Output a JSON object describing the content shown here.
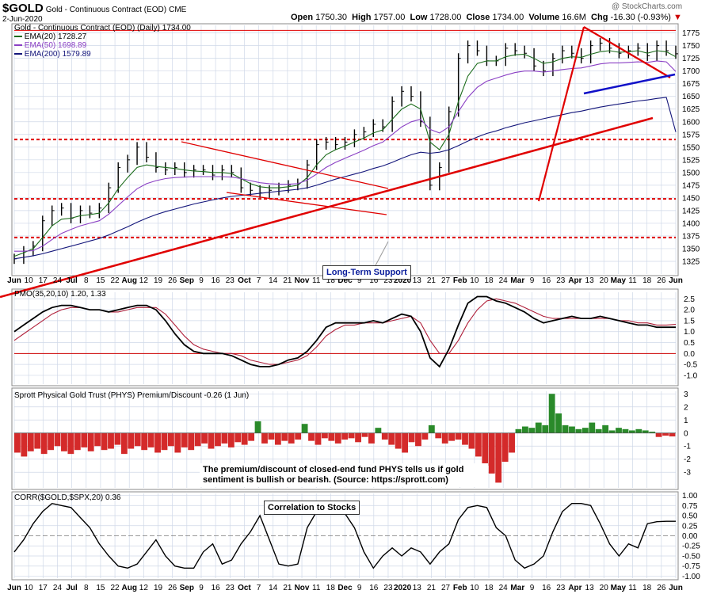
{
  "header": {
    "symbol": "$GOLD",
    "name": "Gold - Continuous Contract (EOD)",
    "exchange": "CME",
    "date": "2-Jun-2020",
    "open_label": "Open",
    "open": "1750.30",
    "high_label": "High",
    "high": "1757.00",
    "low_label": "Low",
    "low": "1728.00",
    "close_label": "Close",
    "close": "1734.00",
    "volume_label": "Volume",
    "volume": "16.6M",
    "chg_label": "Chg",
    "chg": "-16.30 (-0.93%)",
    "chg_arrow": "▼",
    "credit": "@ StockCharts.com"
  },
  "colors": {
    "price_bar": "#000000",
    "ema20": "#1a6b1a",
    "ema50": "#8a3fc4",
    "ema200": "#13157a",
    "support_red": "#e00000",
    "trend_blue": "#1010c8",
    "pmo_black": "#000000",
    "pmo_signal": "#b0203a",
    "premium_green": "#2a8a2a",
    "discount_red": "#d42a2a",
    "zero_line": "#cc0000",
    "grid": "#cfd8e8",
    "corr_line": "#000000"
  },
  "chart_data": [
    {
      "type": "line",
      "title": "Gold - Continuous Contract (EOD) (Daily) 1734.00",
      "legend": [
        {
          "label": "EMA(20) 1728.27",
          "color": "#1a6b1a"
        },
        {
          "label": "EMA(50) 1698.89",
          "color": "#8a3fc4"
        },
        {
          "label": "EMA(200) 1579.89",
          "color": "#13157a"
        }
      ],
      "ylim": [
        1300,
        1790
      ],
      "y_ticks": [
        1325,
        1350,
        1375,
        1400,
        1425,
        1450,
        1475,
        1500,
        1525,
        1550,
        1575,
        1600,
        1625,
        1650,
        1675,
        1700,
        1725,
        1750,
        1775
      ],
      "horizontal_levels": [
        1372,
        1448,
        1565,
        1780
      ],
      "annotation": "Long-Term Support",
      "x": [
        0,
        4,
        8,
        12,
        16,
        20,
        24,
        28,
        32,
        36,
        40,
        44,
        48,
        52,
        56,
        60,
        64,
        68,
        72,
        76,
        80,
        84,
        88,
        92,
        96,
        100,
        104,
        108,
        112,
        116,
        120,
        124,
        128,
        132,
        136,
        140,
        144,
        148,
        152,
        156,
        160,
        164,
        168,
        172,
        176,
        180,
        184,
        188,
        192,
        196,
        200,
        204,
        208,
        212,
        216,
        220,
        224,
        228,
        232,
        236,
        240,
        244,
        248,
        252,
        256,
        260,
        264,
        268,
        272,
        276,
        280
      ],
      "close": [
        1330,
        1345,
        1355,
        1405,
        1425,
        1430,
        1410,
        1425,
        1420,
        1430,
        1470,
        1510,
        1525,
        1550,
        1530,
        1510,
        1505,
        1510,
        1500,
        1505,
        1505,
        1495,
        1505,
        1500,
        1470,
        1465,
        1460,
        1465,
        1470,
        1475,
        1478,
        1515,
        1555,
        1560,
        1555,
        1560,
        1575,
        1580,
        1595,
        1590,
        1640,
        1660,
        1650,
        1600,
        1475,
        1510,
        1620,
        1725,
        1750,
        1740,
        1720,
        1720,
        1745,
        1740,
        1735,
        1710,
        1700,
        1725,
        1740,
        1735,
        1725,
        1750,
        1755,
        1745,
        1735,
        1740,
        1745,
        1730,
        1750,
        1740,
        1734
      ],
      "ema20": [
        1335,
        1342,
        1350,
        1372,
        1395,
        1408,
        1410,
        1415,
        1417,
        1420,
        1440,
        1468,
        1490,
        1510,
        1515,
        1512,
        1510,
        1508,
        1505,
        1503,
        1502,
        1500,
        1500,
        1498,
        1488,
        1478,
        1472,
        1470,
        1470,
        1472,
        1475,
        1490,
        1515,
        1535,
        1545,
        1552,
        1560,
        1568,
        1578,
        1584,
        1605,
        1625,
        1635,
        1625,
        1560,
        1545,
        1575,
        1640,
        1690,
        1715,
        1720,
        1720,
        1728,
        1732,
        1733,
        1725,
        1715,
        1718,
        1725,
        1728,
        1727,
        1733,
        1738,
        1740,
        1737,
        1738,
        1740,
        1735,
        1740,
        1738,
        1728
      ],
      "ema50": [
        1345,
        1345,
        1346,
        1355,
        1368,
        1380,
        1388,
        1395,
        1400,
        1405,
        1418,
        1435,
        1452,
        1468,
        1478,
        1484,
        1488,
        1490,
        1491,
        1492,
        1492,
        1492,
        1492,
        1491,
        1488,
        1484,
        1480,
        1478,
        1477,
        1477,
        1478,
        1485,
        1497,
        1510,
        1520,
        1528,
        1536,
        1544,
        1553,
        1560,
        1575,
        1590,
        1600,
        1605,
        1585,
        1578,
        1590,
        1620,
        1648,
        1668,
        1680,
        1686,
        1692,
        1697,
        1700,
        1700,
        1698,
        1700,
        1703,
        1705,
        1706,
        1710,
        1714,
        1716,
        1716,
        1717,
        1718,
        1717,
        1720,
        1718,
        1699
      ],
      "ema200": [
        1330,
        1333,
        1336,
        1340,
        1345,
        1350,
        1355,
        1360,
        1365,
        1370,
        1377,
        1385,
        1393,
        1402,
        1410,
        1417,
        1423,
        1428,
        1433,
        1438,
        1442,
        1446,
        1450,
        1453,
        1455,
        1457,
        1459,
        1461,
        1463,
        1465,
        1467,
        1470,
        1475,
        1481,
        1487,
        1492,
        1497,
        1502,
        1508,
        1513,
        1520,
        1528,
        1535,
        1540,
        1538,
        1540,
        1545,
        1553,
        1562,
        1570,
        1577,
        1582,
        1588,
        1593,
        1598,
        1602,
        1606,
        1610,
        1614,
        1618,
        1621,
        1625,
        1629,
        1632,
        1635,
        1638,
        1641,
        1643,
        1646,
        1648,
        1580
      ]
    },
    {
      "type": "line",
      "title": "PMO(35,20,10) 1.20, 1.33",
      "ylim": [
        -1.4,
        2.8
      ],
      "y_ticks": [
        -1.0,
        -0.5,
        0.0,
        0.5,
        1.0,
        1.5,
        2.0,
        2.5
      ],
      "pmo": [
        1.0,
        1.3,
        1.6,
        1.9,
        2.1,
        2.2,
        2.2,
        2.1,
        2.0,
        2.0,
        1.9,
        2.0,
        2.1,
        2.2,
        2.2,
        2.0,
        1.5,
        0.9,
        0.4,
        0.1,
        0.0,
        0.0,
        0.0,
        -0.1,
        -0.3,
        -0.5,
        -0.6,
        -0.6,
        -0.5,
        -0.3,
        -0.2,
        0.1,
        0.6,
        1.2,
        1.4,
        1.4,
        1.4,
        1.4,
        1.5,
        1.4,
        1.6,
        1.8,
        1.7,
        1.0,
        -0.2,
        -0.6,
        0.2,
        1.3,
        2.3,
        2.6,
        2.6,
        2.4,
        2.3,
        2.1,
        1.9,
        1.6,
        1.4,
        1.5,
        1.6,
        1.7,
        1.6,
        1.6,
        1.7,
        1.6,
        1.5,
        1.4,
        1.3,
        1.3,
        1.2,
        1.2,
        1.2
      ],
      "signal": [
        0.6,
        0.9,
        1.2,
        1.5,
        1.8,
        2.0,
        2.1,
        2.1,
        2.0,
        2.0,
        1.9,
        1.9,
        2.0,
        2.1,
        2.1,
        2.1,
        1.8,
        1.3,
        0.8,
        0.4,
        0.2,
        0.1,
        0.0,
        0.0,
        -0.1,
        -0.3,
        -0.4,
        -0.5,
        -0.5,
        -0.4,
        -0.3,
        -0.1,
        0.3,
        0.8,
        1.1,
        1.3,
        1.3,
        1.4,
        1.4,
        1.4,
        1.5,
        1.6,
        1.7,
        1.4,
        0.6,
        0.0,
        0.0,
        0.6,
        1.4,
        2.0,
        2.4,
        2.5,
        2.4,
        2.3,
        2.1,
        1.9,
        1.7,
        1.6,
        1.6,
        1.6,
        1.6,
        1.6,
        1.6,
        1.6,
        1.5,
        1.5,
        1.4,
        1.4,
        1.3,
        1.3,
        1.33
      ]
    },
    {
      "type": "bar",
      "title": "Sprott Physical Gold Trust (PHYS) Premium/Discount -0.26 (1 Jun)",
      "ylim": [
        -4.2,
        3.2
      ],
      "y_ticks": [
        -3,
        -2,
        -1,
        0,
        1,
        2,
        3
      ],
      "annotation": "The premium/discount of closed-end fund PHYS tells us if gold sentiment is bullish or bearish. (Source: https://sprott.com)",
      "values": [
        -1.5,
        -1.8,
        -1.4,
        -1.2,
        -1.6,
        -1.3,
        -1.0,
        -1.4,
        -1.6,
        -1.3,
        -1.1,
        -1.4,
        -1.0,
        -1.3,
        -1.2,
        -0.9,
        -1.6,
        -1.2,
        -1.0,
        -1.3,
        -1.1,
        -1.5,
        -1.3,
        -1.0,
        -1.5,
        -1.1,
        -1.3,
        -1.0,
        -0.8,
        -1.2,
        -1.0,
        -0.8,
        -1.1,
        -0.7,
        -0.9,
        -0.6,
        0.9,
        -0.8,
        -0.5,
        -0.9,
        -0.6,
        -0.8,
        -0.5,
        0.7,
        -0.6,
        -0.9,
        -0.4,
        -0.6,
        -0.8,
        -0.5,
        -0.4,
        -0.7,
        -0.3,
        -0.8,
        0.4,
        -0.5,
        -0.9,
        -1.2,
        -1.5,
        -0.7,
        -1.0,
        -0.5,
        0.6,
        -0.4,
        -0.8,
        -0.6,
        -0.5,
        -0.9,
        -1.2,
        -1.8,
        -2.5,
        -3.1,
        -3.8,
        -2.2,
        -1.5,
        0.3,
        0.5,
        0.4,
        0.8,
        0.6,
        3.0,
        1.5,
        0.6,
        0.5,
        0.3,
        0.4,
        0.8,
        0.3,
        0.6,
        0.2,
        0.4,
        0.3,
        0.2,
        0.3,
        0.2,
        0.1,
        -0.3,
        -0.2,
        -0.26
      ],
      "premium_color": "#2a8a2a",
      "discount_color": "#d42a2a"
    },
    {
      "type": "line",
      "title": "CORR($GOLD,$SPX,20) 0.36",
      "ylim": [
        -1.05,
        1.05
      ],
      "y_ticks": [
        -1.0,
        -0.75,
        -0.5,
        -0.25,
        0.0,
        0.25,
        0.5,
        0.75,
        1.0
      ],
      "annotation": "Correlation to Stocks",
      "values": [
        -0.4,
        -0.1,
        0.3,
        0.6,
        0.8,
        0.75,
        0.7,
        0.45,
        0.2,
        -0.2,
        -0.5,
        -0.75,
        -0.8,
        -0.7,
        -0.4,
        -0.1,
        -0.5,
        -0.75,
        -0.8,
        -0.8,
        -0.4,
        -0.2,
        -0.7,
        -0.6,
        -0.2,
        0.1,
        0.5,
        -0.1,
        -0.7,
        -0.75,
        -0.7,
        0.2,
        0.6,
        0.7,
        0.7,
        0.55,
        0.2,
        -0.4,
        -0.8,
        -0.5,
        -0.3,
        -0.5,
        -0.3,
        -0.4,
        -0.7,
        -0.4,
        -0.2,
        0.4,
        0.7,
        0.75,
        0.7,
        0.2,
        0.0,
        -0.6,
        -0.8,
        -0.7,
        -0.5,
        0.1,
        0.6,
        0.8,
        0.8,
        0.75,
        0.3,
        -0.2,
        -0.5,
        -0.2,
        -0.3,
        0.3,
        0.35,
        0.36,
        0.36
      ]
    }
  ],
  "x_axis": {
    "labels": [
      "Jun",
      "10",
      "17",
      "24",
      "Jul",
      "8",
      "15",
      "22",
      "Aug",
      "12",
      "19",
      "26",
      "Sep",
      "9",
      "16",
      "23",
      "Oct",
      "7",
      "14",
      "21",
      "Nov",
      "11",
      "18",
      "Dec",
      "9",
      "16",
      "23",
      "2020",
      "13",
      "21",
      "27",
      "Feb",
      "10",
      "18",
      "24",
      "Mar",
      "9",
      "16",
      "23",
      "Apr",
      "13",
      "20",
      "May",
      "11",
      "18",
      "26",
      "Jun"
    ]
  }
}
